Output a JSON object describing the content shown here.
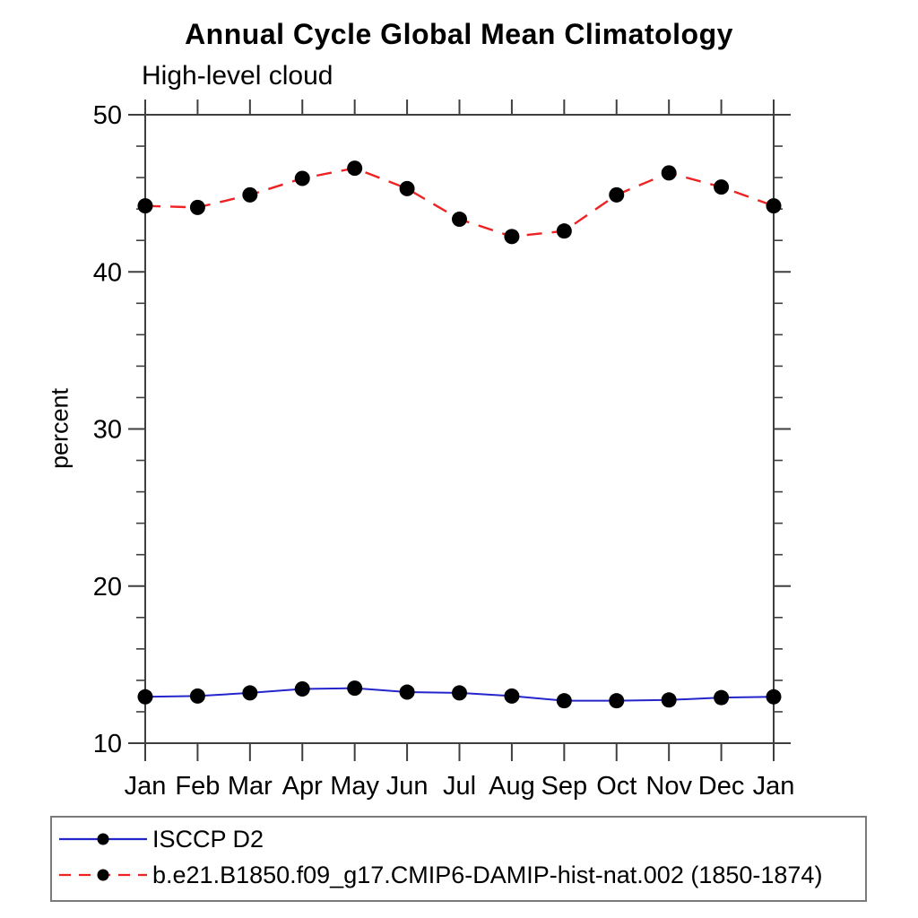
{
  "title": "Annual Cycle Global Mean Climatology",
  "subtitle": "High-level cloud",
  "chart_data": {
    "type": "line",
    "title": "Annual Cycle Global Mean Climatology",
    "subtitle": "High-level cloud",
    "ylabel": "percent",
    "xlabel": "",
    "x_categories": [
      "Jan",
      "Feb",
      "Mar",
      "Apr",
      "May",
      "Jun",
      "Jul",
      "Aug",
      "Sep",
      "Oct",
      "Nov",
      "Dec",
      "Jan"
    ],
    "ylim": [
      10,
      50
    ],
    "y_major_ticks": [
      10,
      20,
      30,
      40,
      50
    ],
    "y_minor_step": 2,
    "grid": false,
    "legend_position": "bottom-left-box",
    "axis_color": "#3f3f3f",
    "text_color": "#000000",
    "marker_color": "#000000",
    "series": [
      {
        "name": "ISCCP D2",
        "color": "#2525cc",
        "line_style": "solid",
        "marker": "filled-circle",
        "values": [
          12.95,
          13.0,
          13.2,
          13.45,
          13.5,
          13.25,
          13.2,
          13.0,
          12.7,
          12.7,
          12.75,
          12.9,
          12.95
        ]
      },
      {
        "name": "b.e21.B1850.f09_g17.CMIP6-DAMIP-hist-nat.002 (1850-1874)",
        "color": "#ee2222",
        "line_style": "dashed",
        "marker": "filled-circle",
        "values": [
          44.2,
          44.1,
          44.9,
          45.95,
          46.6,
          45.3,
          43.35,
          42.25,
          42.6,
          44.9,
          46.3,
          45.4,
          44.2
        ]
      }
    ]
  }
}
